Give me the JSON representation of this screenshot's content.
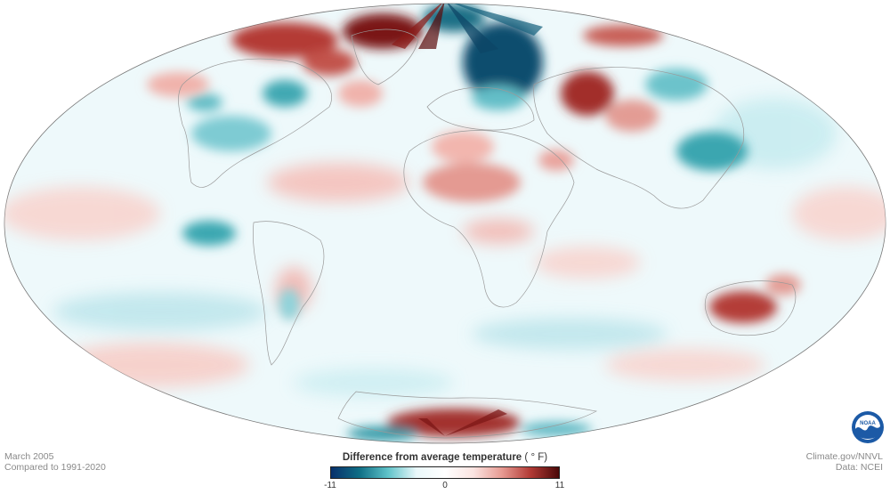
{
  "map": {
    "projection": "Mollweide",
    "dataset_visible": "surface temperature anomaly"
  },
  "footer": {
    "date": "March 2005",
    "baseline": "Compared to 1991-2020",
    "site": "Climate.gov/NNVL",
    "source": "Data: NCEI"
  },
  "legend": {
    "title": "Difference from average temperature",
    "unit": "( ° F)",
    "min_label": "-11",
    "mid_label": "0",
    "max_label": "11",
    "colors": [
      "#08306b",
      "#0f6f86",
      "#5fc3c9",
      "#eaf8fa",
      "#ffffff",
      "#fbe4e1",
      "#e79a92",
      "#b23a35",
      "#4a0808"
    ]
  },
  "logo": {
    "text": "NOAA",
    "icon": "noaa-logo-icon"
  }
}
